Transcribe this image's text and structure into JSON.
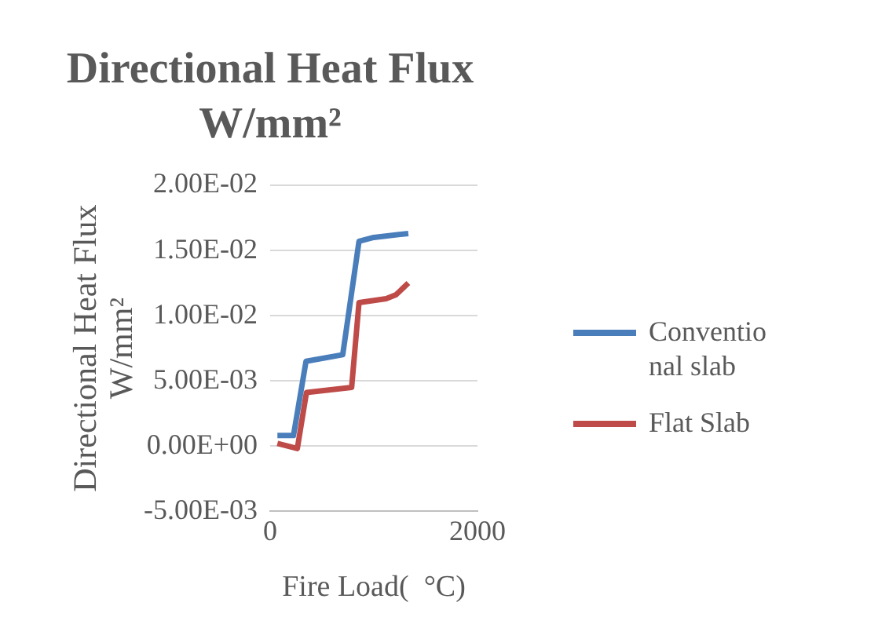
{
  "chart_data": {
    "type": "line",
    "title": "Directional Heat Flux W/mm²",
    "xlabel": "Fire Load(  °C)",
    "ylabel": "Directional Heat Flux W/mm²",
    "xlim": [
      0,
      2000
    ],
    "xticks": [
      0,
      2000
    ],
    "ylim": [
      -0.005,
      0.02
    ],
    "yticks": [
      {
        "value": -0.005,
        "label": "-5.00E-03"
      },
      {
        "value": 0,
        "label": "0.00E+00"
      },
      {
        "value": 0.005,
        "label": "5.00E-03"
      },
      {
        "value": 0.01,
        "label": "1.00E-02"
      },
      {
        "value": 0.015,
        "label": "1.50E-02"
      },
      {
        "value": 0.02,
        "label": "2.00E-02"
      }
    ],
    "grid": "y",
    "legend": "right",
    "marker": "none",
    "series": [
      {
        "name": "Conventional slab",
        "color": "#4a7ebb",
        "x": [
          70,
          225,
          346,
          700,
          857,
          1000,
          1333
        ],
        "values": [
          0.0008,
          0.0008,
          0.0065,
          0.007,
          0.0157,
          0.016,
          0.0163
        ]
      },
      {
        "name": "Flat Slab",
        "color": "#be4b48",
        "x": [
          70,
          262,
          350,
          786,
          857,
          1119,
          1214,
          1333
        ],
        "values": [
          0.0002,
          -0.0002,
          0.0041,
          0.0045,
          0.011,
          0.0113,
          0.0116,
          0.0125
        ]
      }
    ]
  }
}
